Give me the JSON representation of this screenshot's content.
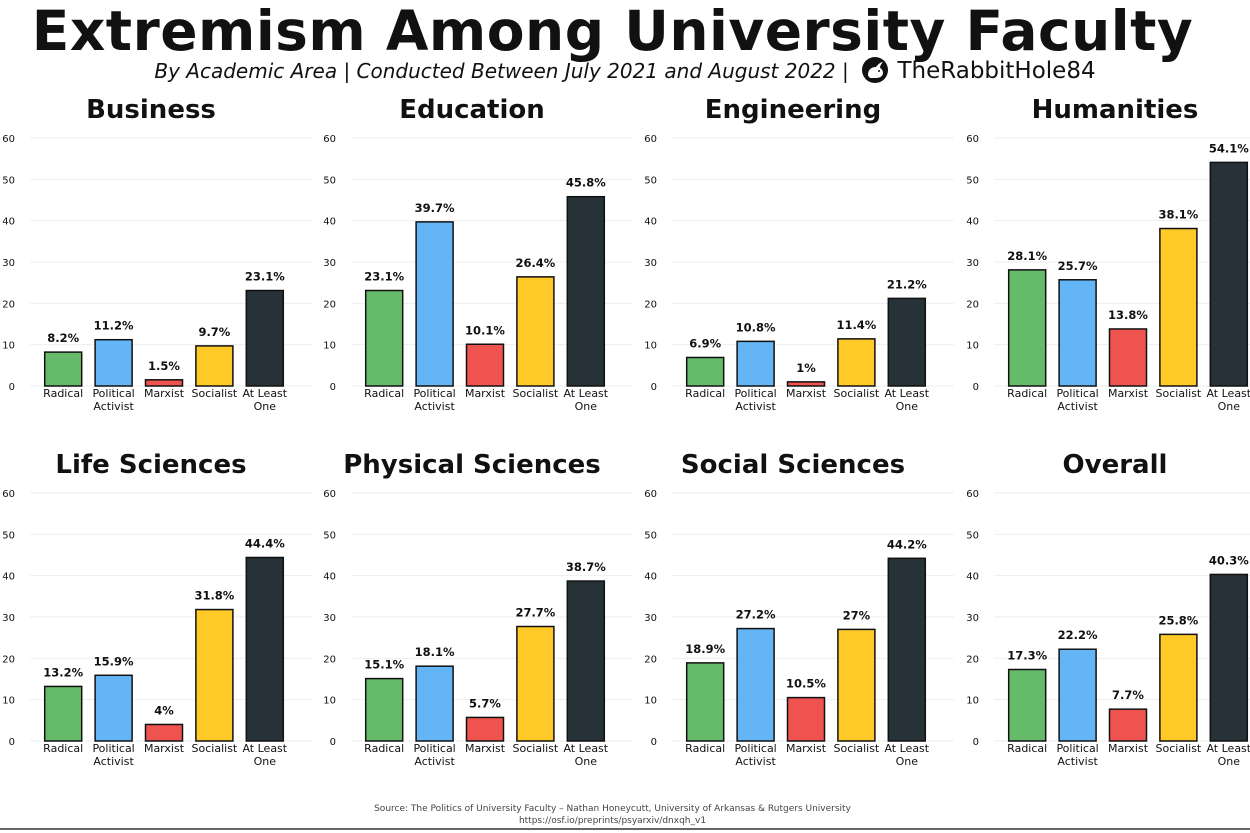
{
  "header": {
    "title": "Extremism Among University Faculty",
    "subtitle": "By Academic Area | Conducted Between July 2021 and August 2022 |",
    "handle": "TheRabbitHole84",
    "logo_icon": "rabbit-icon"
  },
  "footer": {
    "source": "Source: The Politics of University Faculty – Nathan Honeycutt, University of Arkansas & Rutgers University",
    "url": "https://osf.io/preprints/psyarxiv/dnxqh_v1"
  },
  "colors": {
    "radical": "#66bb6a",
    "political_activist": "#64b5f6",
    "marxist": "#ef5350",
    "socialist": "#ffca28",
    "at_least_one": "#263238",
    "outline": "#111111",
    "grid": "#eeeeee"
  },
  "chart_data": [
    {
      "type": "bar",
      "title": "Business",
      "categories": [
        "Radical",
        "Political Activist",
        "Marxist",
        "Socialist",
        "At Least One"
      ],
      "values": [
        8.2,
        11.2,
        1.5,
        9.7,
        23.1
      ],
      "labels": [
        "8.2%",
        "11.2%",
        "1.5%",
        "9.7%",
        "23.1%"
      ],
      "yticks": [
        "0",
        "10",
        "20",
        "30",
        "40",
        "50",
        "60"
      ],
      "ylim": [
        0,
        60
      ]
    },
    {
      "type": "bar",
      "title": "Education",
      "categories": [
        "Radical",
        "Political Activist",
        "Marxist",
        "Socialist",
        "At Least One"
      ],
      "values": [
        23.1,
        39.7,
        10.1,
        26.4,
        45.8
      ],
      "labels": [
        "23.1%",
        "39.7%",
        "10.1%",
        "26.4%",
        "45.8%"
      ],
      "yticks": [
        "0",
        "10",
        "20",
        "30",
        "40",
        "50",
        "60"
      ],
      "ylim": [
        0,
        60
      ]
    },
    {
      "type": "bar",
      "title": "Engineering",
      "categories": [
        "Radical",
        "Political Activist",
        "Marxist",
        "Socialist",
        "At Least One"
      ],
      "values": [
        6.9,
        10.8,
        1,
        11.4,
        21.2
      ],
      "labels": [
        "6.9%",
        "10.8%",
        "1%",
        "11.4%",
        "21.2%"
      ],
      "yticks": [
        "0",
        "10",
        "20",
        "30",
        "40",
        "50",
        "60"
      ],
      "ylim": [
        0,
        60
      ]
    },
    {
      "type": "bar",
      "title": "Humanities",
      "categories": [
        "Radical",
        "Political Activist",
        "Marxist",
        "Socialist",
        "At Least One"
      ],
      "values": [
        28.1,
        25.7,
        13.8,
        38.1,
        54.1
      ],
      "labels": [
        "28.1%",
        "25.7%",
        "13.8%",
        "38.1%",
        "54.1%"
      ],
      "yticks": [
        "0",
        "10",
        "20",
        "30",
        "40",
        "50",
        "60"
      ],
      "ylim": [
        0,
        60
      ]
    },
    {
      "type": "bar",
      "title": "Life Sciences",
      "categories": [
        "Radical",
        "Political Activist",
        "Marxist",
        "Socialist",
        "At Least One"
      ],
      "values": [
        13.2,
        15.9,
        4,
        31.8,
        44.4
      ],
      "labels": [
        "13.2%",
        "15.9%",
        "4%",
        "31.8%",
        "44.4%"
      ],
      "yticks": [
        "0",
        "10",
        "20",
        "30",
        "40",
        "50",
        "60"
      ],
      "ylim": [
        0,
        60
      ]
    },
    {
      "type": "bar",
      "title": "Physical Sciences",
      "categories": [
        "Radical",
        "Political Activist",
        "Marxist",
        "Socialist",
        "At Least One"
      ],
      "values": [
        15.1,
        18.1,
        5.7,
        27.7,
        38.7
      ],
      "labels": [
        "15.1%",
        "18.1%",
        "5.7%",
        "27.7%",
        "38.7%"
      ],
      "yticks": [
        "0",
        "10",
        "20",
        "30",
        "40",
        "50",
        "60"
      ],
      "ylim": [
        0,
        60
      ]
    },
    {
      "type": "bar",
      "title": "Social Sciences",
      "categories": [
        "Radical",
        "Political Activist",
        "Marxist",
        "Socialist",
        "At Least One"
      ],
      "values": [
        18.9,
        27.2,
        10.5,
        27,
        44.2
      ],
      "labels": [
        "18.9%",
        "27.2%",
        "10.5%",
        "27%",
        "44.2%"
      ],
      "yticks": [
        "0",
        "10",
        "20",
        "30",
        "40",
        "50",
        "60"
      ],
      "ylim": [
        0,
        60
      ]
    },
    {
      "type": "bar",
      "title": "Overall",
      "categories": [
        "Radical",
        "Political Activist",
        "Marxist",
        "Socialist",
        "At Least One"
      ],
      "values": [
        17.3,
        22.2,
        7.7,
        25.8,
        40.3
      ],
      "labels": [
        "17.3%",
        "22.2%",
        "7.7%",
        "25.8%",
        "40.3%"
      ],
      "yticks": [
        "0",
        "10",
        "20",
        "30",
        "40",
        "50",
        "60"
      ],
      "ylim": [
        0,
        60
      ]
    }
  ]
}
